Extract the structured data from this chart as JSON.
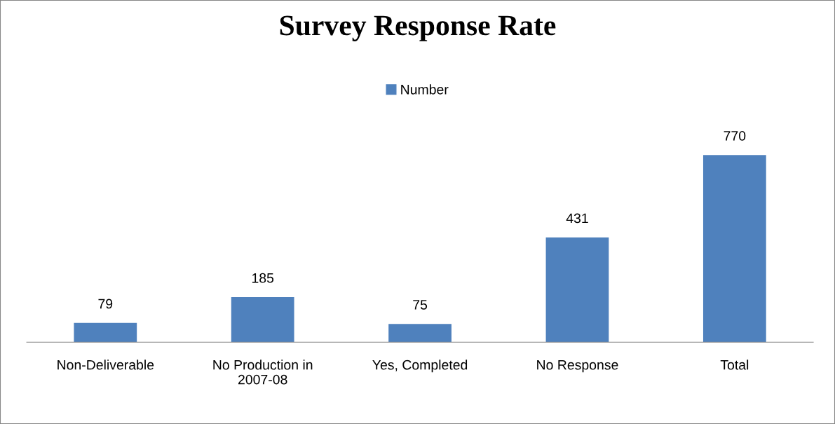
{
  "chart_data": {
    "type": "bar",
    "title": "Survey Response Rate",
    "categories": [
      "Non-Deliverable",
      "No Production in\n2007-08",
      "Yes, Completed",
      "No Response",
      "Total"
    ],
    "series": [
      {
        "name": "Number",
        "color": "#4f81bd",
        "values": [
          79,
          185,
          75,
          431,
          770
        ]
      }
    ],
    "data_labels": true,
    "legend": "top",
    "grid": false
  }
}
